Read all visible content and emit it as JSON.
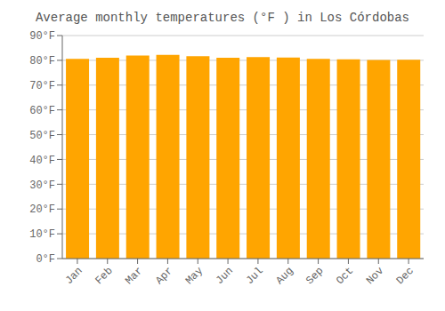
{
  "chart_data": {
    "type": "bar",
    "title": "Average monthly temperatures (°F ) in Los Córdobas",
    "categories": [
      "Jan",
      "Feb",
      "Mar",
      "Apr",
      "May",
      "Jun",
      "Jul",
      "Aug",
      "Sep",
      "Oct",
      "Nov",
      "Dec"
    ],
    "values": [
      80.6,
      81.0,
      81.9,
      82.2,
      81.7,
      81.0,
      81.3,
      81.1,
      80.6,
      80.4,
      80.1,
      80.2
    ],
    "color": "#FFA500",
    "ylim": [
      0,
      90
    ],
    "yticks": [
      {
        "value": 0,
        "label": "0°F"
      },
      {
        "value": 10,
        "label": "10°F"
      },
      {
        "value": 20,
        "label": "20°F"
      },
      {
        "value": 30,
        "label": "30°F"
      },
      {
        "value": 40,
        "label": "40°F"
      },
      {
        "value": 50,
        "label": "50°F"
      },
      {
        "value": 60,
        "label": "60°F"
      },
      {
        "value": 70,
        "label": "70°F"
      },
      {
        "value": 80,
        "label": "80°F"
      },
      {
        "value": 90,
        "label": "90°F"
      }
    ],
    "grid": true
  }
}
